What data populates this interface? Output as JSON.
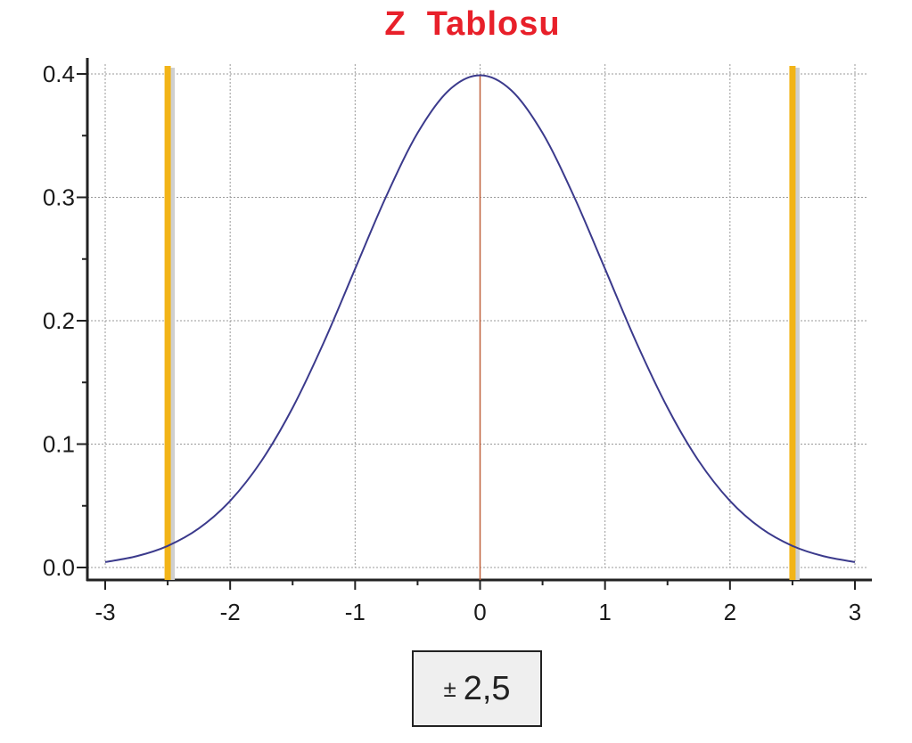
{
  "title": "Z  Tablosu",
  "critical_label": {
    "sign": "±",
    "value": "2,5"
  },
  "colors": {
    "title": "#e8202a",
    "curve": "#3b3a8c",
    "critical_lines": "#f2b418",
    "mean_line": "#c0603a",
    "grid": "#999999"
  },
  "chart_data": {
    "type": "line",
    "title": "Z  Tablosu",
    "xlabel": "",
    "ylabel": "",
    "xlim": [
      -3,
      3
    ],
    "ylim": [
      0,
      0.4
    ],
    "x_ticks": [
      "-3",
      "-2",
      "-1",
      "0",
      "1",
      "2",
      "3"
    ],
    "y_ticks": [
      "0.0",
      "0.1",
      "0.2",
      "0.3",
      "0.4"
    ],
    "grid": true,
    "series": [
      {
        "x": [
          -3,
          -2.75,
          -2.5,
          -2.25,
          -2,
          -1.75,
          -1.5,
          -1.25,
          -1,
          -0.75,
          -0.5,
          -0.25,
          0,
          0.25,
          0.5,
          0.75,
          1,
          1.25,
          1.5,
          1.75,
          2,
          2.25,
          2.5,
          2.75,
          3
        ],
        "y": [
          0.0044,
          0.0091,
          0.0175,
          0.0317,
          0.054,
          0.0863,
          0.1295,
          0.1826,
          0.242,
          0.3011,
          0.3521,
          0.3867,
          0.3989,
          0.3867,
          0.3521,
          0.3011,
          0.242,
          0.1826,
          0.1295,
          0.0863,
          0.054,
          0.0317,
          0.0175,
          0.0091,
          0.0044
        ]
      }
    ],
    "vertical_lines": [
      {
        "x": -2.5,
        "role": "critical"
      },
      {
        "x": 0,
        "role": "mean"
      },
      {
        "x": 2.5,
        "role": "critical"
      }
    ]
  }
}
